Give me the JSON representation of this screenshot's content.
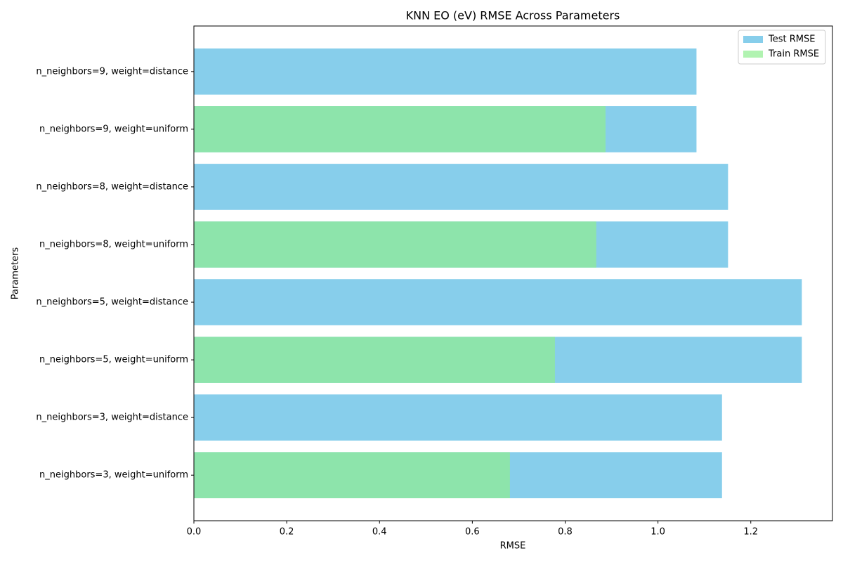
{
  "chart_data": {
    "type": "barh",
    "title": "KNN EO (eV) RMSE Across Parameters",
    "xlabel": "RMSE",
    "ylabel": "Parameters",
    "categories": [
      "n_neighbors=3, weight=uniform",
      "n_neighbors=3, weight=distance",
      "n_neighbors=5, weight=uniform",
      "n_neighbors=5, weight=distance",
      "n_neighbors=8, weight=uniform",
      "n_neighbors=8, weight=distance",
      "n_neighbors=9, weight=uniform",
      "n_neighbors=9, weight=distance"
    ],
    "series": [
      {
        "name": "Test RMSE",
        "color": "#87ceeb",
        "opacity": 1,
        "values": [
          1.138,
          1.138,
          1.31,
          1.31,
          1.151,
          1.151,
          1.083,
          1.083
        ]
      },
      {
        "name": "Train RMSE",
        "color": "#90ee90",
        "opacity": 0.7,
        "values": [
          0.681,
          0,
          0.778,
          0,
          0.867,
          0,
          0.887,
          0
        ]
      }
    ],
    "xlim": [
      0,
      1.376
    ],
    "xticks": [
      {
        "value": 0,
        "label": "0.0"
      },
      0.2,
      0.4,
      0.6,
      0.8,
      {
        "value": 1,
        "label": "1.0"
      },
      1.2
    ],
    "grid": false,
    "legend": "upper right"
  }
}
